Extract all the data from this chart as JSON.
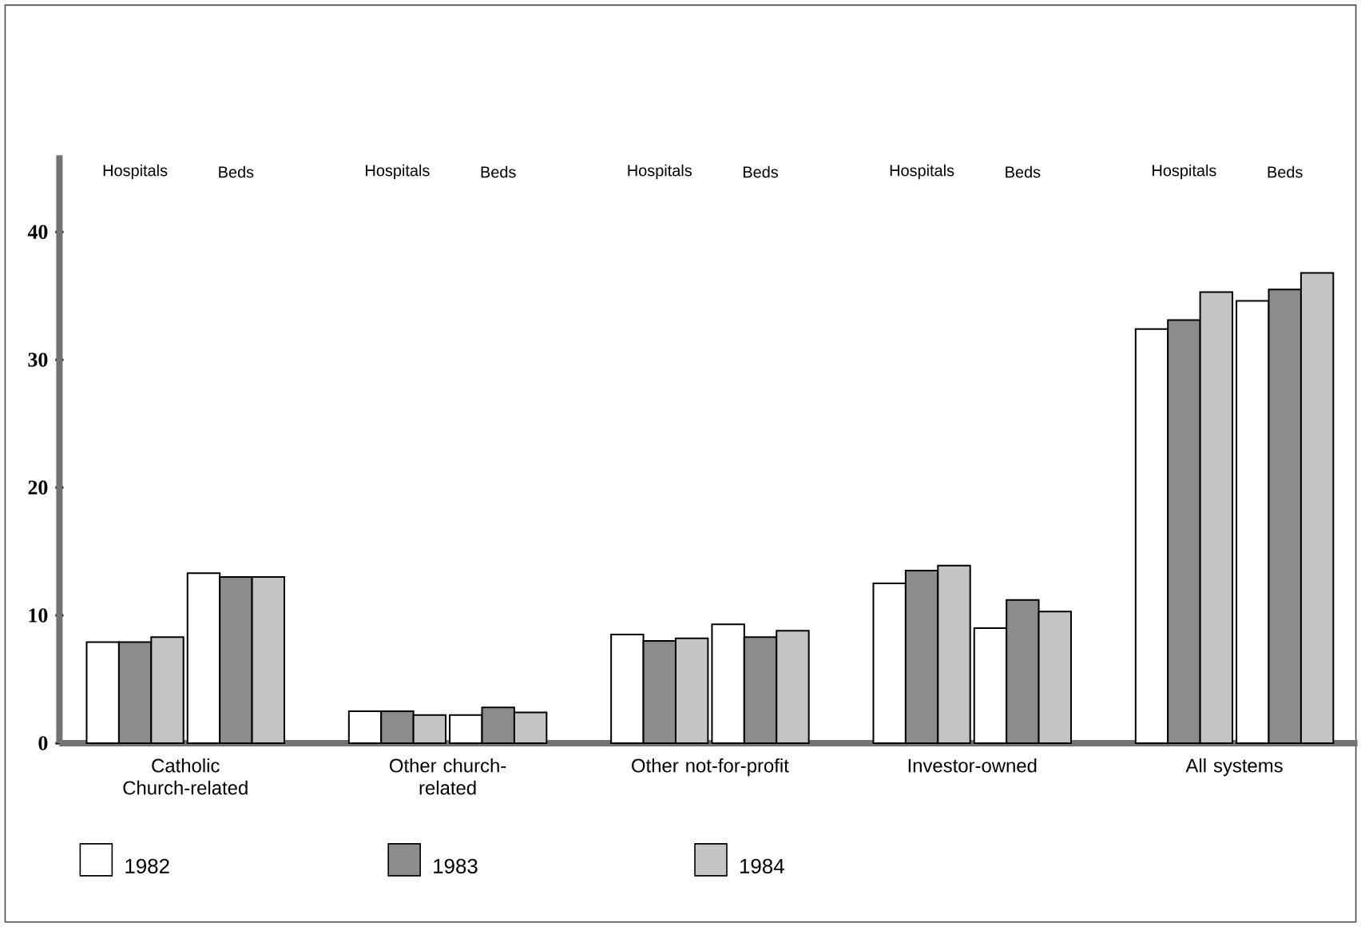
{
  "chart_data": {
    "type": "bar",
    "categories": [
      "Hospitals",
      "Beds",
      "Hospitals",
      "Beds",
      "Hospitals",
      "Beds",
      "Hospitals",
      "Beds",
      "Hospitals",
      "Beds"
    ],
    "series": [
      {
        "name": "1982",
        "color": "#ffffff",
        "values": [
          7.9,
          13.3,
          2.5,
          2.2,
          8.5,
          9.3,
          12.5,
          9.0,
          32.4,
          34.6
        ]
      },
      {
        "name": "1983",
        "color": "#8c8c8c",
        "values": [
          7.9,
          13.0,
          2.5,
          2.8,
          8.0,
          8.3,
          13.5,
          11.2,
          33.1,
          35.5
        ]
      },
      {
        "name": "1984",
        "color": "#c4c4c4",
        "values": [
          8.3,
          13.0,
          2.2,
          2.4,
          8.2,
          8.8,
          13.9,
          10.3,
          35.3,
          36.8
        ]
      }
    ],
    "annotations": [
      "Catholic Church-related",
      "Other church-related",
      "Other not-for-profit",
      "Investor-owned",
      "All systems"
    ],
    "ylim": [
      0,
      46
    ],
    "yticks": [
      0,
      10,
      20,
      30,
      40
    ],
    "grid": false,
    "legend": "bottom"
  }
}
